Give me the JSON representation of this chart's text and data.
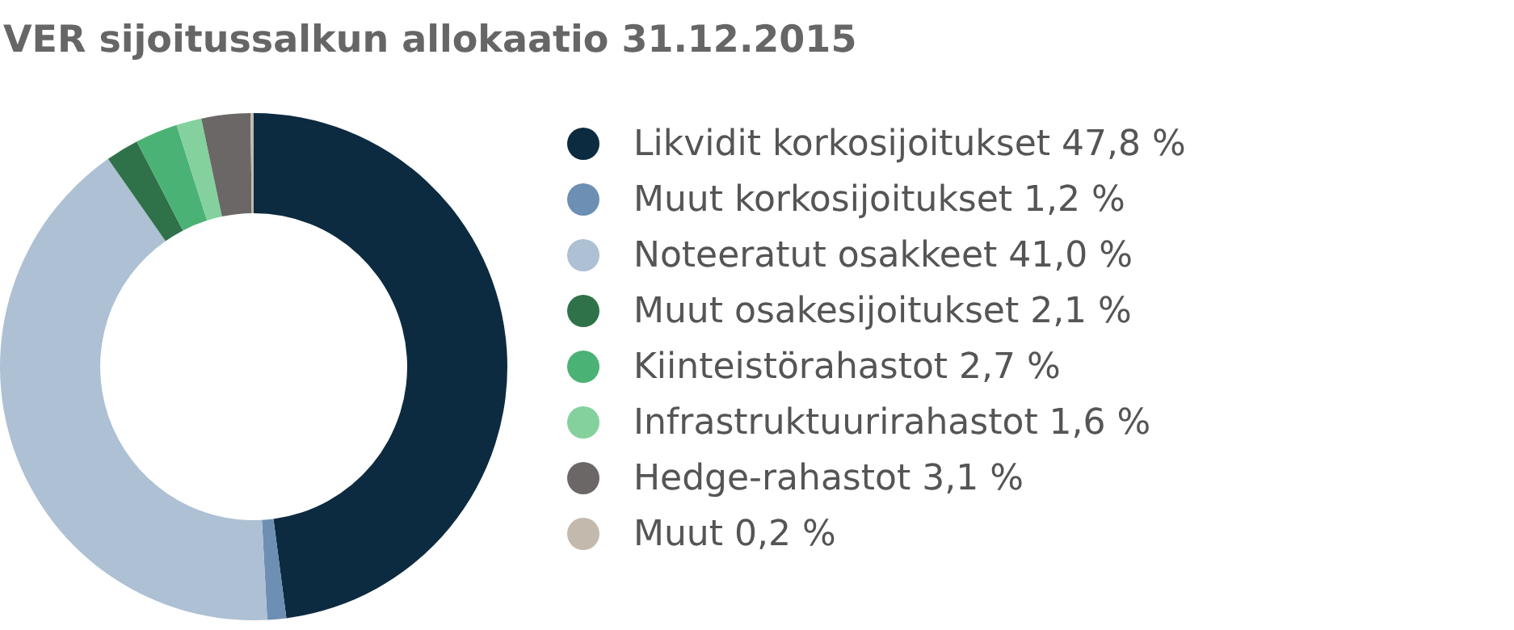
{
  "chart_data": {
    "type": "donut",
    "title": "VER sijoitussalkun allokaatio 31.12.2015",
    "categories": [
      "Likvidit korkosijoitukset",
      "Muut korkosijoitukset",
      "Noteeratut osakkeet",
      "Muut osakesijoitukset",
      "Kiinteistörahastot",
      "Infrastruktuurirahastot",
      "Hedge-rahastot",
      "Muut"
    ],
    "values": [
      47.8,
      1.2,
      41.0,
      2.1,
      2.7,
      1.6,
      3.1,
      0.2
    ],
    "value_labels": [
      "47,8 %",
      "1,2 %",
      "41,0 %",
      "2,1 %",
      "2,7 %",
      "1,6 %",
      "3,1 %",
      "0,2 %"
    ],
    "colors": [
      "#0d2b40",
      "#6d8fb3",
      "#adc0d4",
      "#2f7249",
      "#4bb275",
      "#84d19d",
      "#6b6767",
      "#c3b9ad"
    ],
    "legend": "right"
  }
}
